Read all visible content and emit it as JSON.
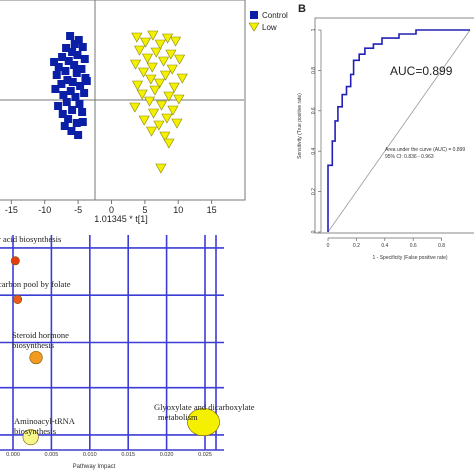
{
  "figure": {
    "panel_b_label": "B"
  },
  "chart_data": [
    {
      "type": "scatter",
      "panel": "A (scores plot, cropped)",
      "xlabel": "1.01345 * t[1]",
      "ylabel": "",
      "xlim": [
        -17,
        20
      ],
      "ylim": [
        -11,
        9
      ],
      "x_ticks": [
        -15,
        -10,
        -5,
        0,
        5,
        10,
        15
      ],
      "x_tick_labels": [
        "-15",
        "-10",
        "-5",
        "0",
        "5",
        "10",
        "15"
      ],
      "legend_position": "top-right",
      "series": [
        {
          "name": "Control",
          "marker": "square",
          "color": "#0a1fa6",
          "points": [
            [
              -6.2,
              5.4
            ],
            [
              -4.9,
              5.0
            ],
            [
              -5.5,
              4.6
            ],
            [
              -6.8,
              4.2
            ],
            [
              -4.3,
              4.3
            ],
            [
              -5.9,
              3.8
            ],
            [
              -7.4,
              3.3
            ],
            [
              -5.1,
              3.5
            ],
            [
              -4.0,
              3.1
            ],
            [
              -6.4,
              2.9
            ],
            [
              -7.9,
              2.3
            ],
            [
              -5.6,
              2.5
            ],
            [
              -4.5,
              2.1
            ],
            [
              -6.9,
              1.9
            ],
            [
              -8.2,
              1.5
            ],
            [
              -5.2,
              1.7
            ],
            [
              -3.9,
              1.2
            ],
            [
              -6.6,
              1.0
            ],
            [
              -7.5,
              0.6
            ],
            [
              -5.8,
              0.8
            ],
            [
              -4.7,
              0.4
            ],
            [
              -8.4,
              0.1
            ],
            [
              -6.1,
              -0.1
            ],
            [
              -4.1,
              -0.3
            ],
            [
              -7.2,
              -0.5
            ],
            [
              -5.4,
              -0.7
            ],
            [
              -6.7,
              -1.2
            ],
            [
              -8.0,
              -1.6
            ],
            [
              -4.8,
              -1.4
            ],
            [
              -5.9,
              -2.0
            ],
            [
              -7.3,
              -2.4
            ],
            [
              -4.4,
              -2.2
            ],
            [
              -6.5,
              -2.9
            ],
            [
              -5.2,
              -3.3
            ],
            [
              -7.0,
              -3.6
            ],
            [
              -4.3,
              -3.2
            ],
            [
              -6.0,
              -4.1
            ],
            [
              -5.0,
              -4.5
            ],
            [
              -3.7,
              0.9
            ],
            [
              -8.6,
              2.8
            ]
          ]
        },
        {
          "name": "Low",
          "marker": "triangle-down",
          "color": "#f4f000",
          "points": [
            [
              3.8,
              5.3
            ],
            [
              6.2,
              5.5
            ],
            [
              8.4,
              5.2
            ],
            [
              5.1,
              4.8
            ],
            [
              7.3,
              4.6
            ],
            [
              9.6,
              4.9
            ],
            [
              4.2,
              4.0
            ],
            [
              6.7,
              3.8
            ],
            [
              8.9,
              3.6
            ],
            [
              10.2,
              3.1
            ],
            [
              5.4,
              3.2
            ],
            [
              7.8,
              2.9
            ],
            [
              3.6,
              2.6
            ],
            [
              6.1,
              2.3
            ],
            [
              9.1,
              2.1
            ],
            [
              4.8,
              1.8
            ],
            [
              8.1,
              1.5
            ],
            [
              10.6,
              1.2
            ],
            [
              5.9,
              1.1
            ],
            [
              7.2,
              0.7
            ],
            [
              3.9,
              0.5
            ],
            [
              9.4,
              0.3
            ],
            [
              6.5,
              0.0
            ],
            [
              4.6,
              -0.4
            ],
            [
              8.6,
              -0.6
            ],
            [
              10.1,
              -0.9
            ],
            [
              5.7,
              -1.1
            ],
            [
              7.5,
              -1.5
            ],
            [
              3.5,
              -1.7
            ],
            [
              9.2,
              -2.0
            ],
            [
              6.3,
              -2.3
            ],
            [
              8.3,
              -2.8
            ],
            [
              4.9,
              -3.0
            ],
            [
              7.1,
              -3.5
            ],
            [
              9.8,
              -3.3
            ],
            [
              6.0,
              -4.1
            ],
            [
              8.0,
              -4.6
            ],
            [
              7.4,
              -7.8
            ],
            [
              8.6,
              -5.3
            ]
          ]
        }
      ]
    },
    {
      "type": "line",
      "panel": "B",
      "title": "",
      "xlabel": "1 - Specificity (False positive rate)",
      "ylabel": "Sensitivity (True positive rate)",
      "xlim": [
        0,
        1
      ],
      "ylim": [
        0,
        1
      ],
      "x_ticks": [
        0,
        0.2,
        0.4,
        0.6,
        0.8
      ],
      "x_tick_labels": [
        "0",
        "0.2",
        "0.4",
        "0.6",
        "0.8"
      ],
      "y_ticks": [
        0,
        0.2,
        0.4,
        0.6,
        0.8,
        1
      ],
      "y_tick_labels": [
        "0",
        "0.2",
        "0.4",
        "0.6",
        "0.8",
        "1"
      ],
      "auc_label": "AUC=0.899",
      "annotation_lines": [
        "Area under the curve (AUC) = 0.899",
        "95% CI: 0.836 - 0.963"
      ],
      "roc_points": [
        [
          0,
          0
        ],
        [
          0,
          0.2
        ],
        [
          0,
          0.33
        ],
        [
          0.03,
          0.33
        ],
        [
          0.03,
          0.45
        ],
        [
          0.05,
          0.45
        ],
        [
          0.05,
          0.55
        ],
        [
          0.07,
          0.55
        ],
        [
          0.07,
          0.62
        ],
        [
          0.1,
          0.62
        ],
        [
          0.1,
          0.68
        ],
        [
          0.13,
          0.68
        ],
        [
          0.13,
          0.72
        ],
        [
          0.16,
          0.72
        ],
        [
          0.16,
          0.78
        ],
        [
          0.18,
          0.78
        ],
        [
          0.18,
          0.85
        ],
        [
          0.22,
          0.85
        ],
        [
          0.22,
          0.88
        ],
        [
          0.26,
          0.88
        ],
        [
          0.26,
          0.91
        ],
        [
          0.32,
          0.91
        ],
        [
          0.32,
          0.93
        ],
        [
          0.38,
          0.93
        ],
        [
          0.38,
          0.96
        ],
        [
          0.5,
          0.96
        ],
        [
          0.5,
          0.98
        ],
        [
          0.62,
          0.98
        ],
        [
          0.62,
          1.0
        ],
        [
          1.0,
          1.0
        ]
      ],
      "reference_line": [
        [
          0,
          0
        ],
        [
          1,
          1
        ]
      ],
      "color": "#2020b8"
    },
    {
      "type": "scatter",
      "panel": "C (pathway impact, cropped)",
      "xlabel": "Pathway Impact",
      "ylabel": "",
      "xlim": [
        0,
        0.026
      ],
      "ylim": [
        0,
        1
      ],
      "x_ticks": [
        0.0,
        0.005,
        0.01,
        0.015,
        0.02,
        0.025
      ],
      "x_tick_labels": [
        "0.000",
        "0.005",
        "0.010",
        "0.015",
        "0.020",
        "0.025"
      ],
      "grid": true,
      "bubbles": [
        {
          "label_lines": [
            "Fatty acid biosynthesis"
          ],
          "label_visible": "r acid biosynthesis",
          "x": 0.0003,
          "y": 0.88,
          "size": 0.6,
          "color": "#e83a10"
        },
        {
          "label_lines": [
            "One carbon pool by folate"
          ],
          "label_visible": "carbon pool by folate",
          "x": 0.0006,
          "y": 0.7,
          "size": 0.6,
          "color": "#f05a18"
        },
        {
          "label_lines": [
            "Steroid hormone",
            "biosynthesis"
          ],
          "label_visible": "Steroid hormone biosynthesis",
          "x": 0.003,
          "y": 0.43,
          "size": 0.9,
          "color": "#f29a20"
        },
        {
          "label_lines": [
            "Glyoxylate and dicarboxylate",
            "metabolism"
          ],
          "label_visible": "Glyoxylate and dicarboxylate metabolism",
          "x": 0.0248,
          "y": 0.13,
          "size": 2.3,
          "color": "#f4f000"
        },
        {
          "label_lines": [
            "Aminoacyl-tRNA",
            "biosynthesis"
          ],
          "label_visible": "Aminoacyl-tRNA biosynthesis",
          "x": 0.0023,
          "y": 0.06,
          "size": 1.1,
          "color": "#f8f78a"
        }
      ]
    }
  ]
}
